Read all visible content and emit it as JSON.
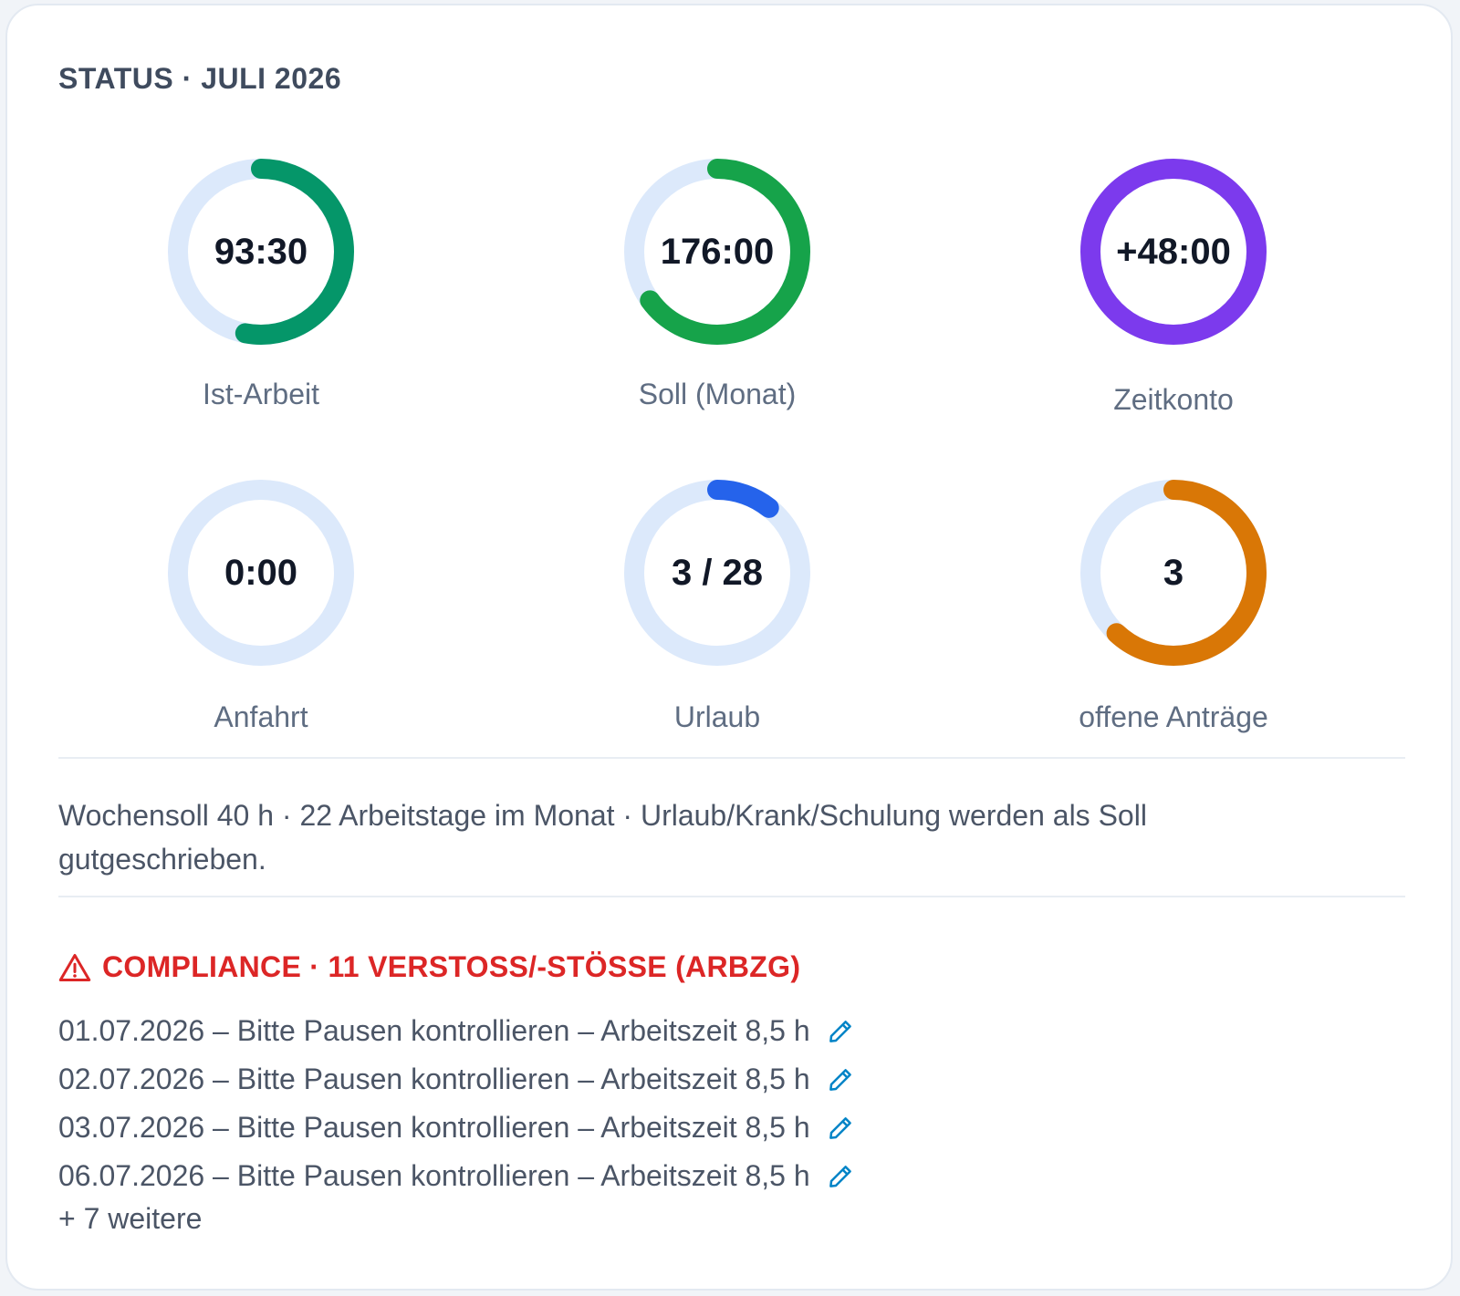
{
  "card": {
    "title": "STATUS · JULI 2026"
  },
  "rings": [
    {
      "value": "93:30",
      "label": "Ist-Arbeit",
      "progress": 0.53,
      "color": "#059669",
      "icon": "ist-arbeit-ring"
    },
    {
      "value": "176:00",
      "label": "Soll (Monat)",
      "progress": 0.65,
      "color": "#16a34a",
      "icon": "soll-ring"
    },
    {
      "value": "+48:00",
      "label": "Zeitkonto",
      "progress": 1.0,
      "color": "#7c3aed",
      "icon": "zeitkonto-ring"
    },
    {
      "value": "0:00",
      "label": "Anfahrt",
      "progress": 0.0,
      "color": "#059669",
      "icon": "anfahrt-ring"
    },
    {
      "value": "3 / 28",
      "label": "Urlaub",
      "progress": 0.107,
      "color": "#2563eb",
      "icon": "urlaub-ring"
    },
    {
      "value": "3",
      "label": "offene Anträge",
      "progress": 0.62,
      "color": "#d97706",
      "icon": "antraege-ring"
    }
  ],
  "ring_track_color": "#dce9fb",
  "note": "Wochensoll 40 h · 22 Arbeitstage im Monat · Urlaub/Krank/Schulung werden als Soll gutgeschrieben.",
  "compliance": {
    "title": "COMPLIANCE · 11 VERSTOSS/-STÖSSE (ARBZG)",
    "icon": "warning-icon",
    "color": "#dc2626",
    "items": [
      {
        "text": "01.07.2026 – Bitte Pausen kontrollieren – Arbeitszeit 8,5 h"
      },
      {
        "text": "02.07.2026 – Bitte Pausen kontrollieren – Arbeitszeit 8,5 h"
      },
      {
        "text": "03.07.2026 – Bitte Pausen kontrollieren – Arbeitszeit 8,5 h"
      },
      {
        "text": "06.07.2026 – Bitte Pausen kontrollieren – Arbeitszeit 8,5 h"
      }
    ],
    "item_icon": "pencil-icon",
    "item_icon_color": "#0284c7",
    "more": "+ 7 weitere"
  }
}
